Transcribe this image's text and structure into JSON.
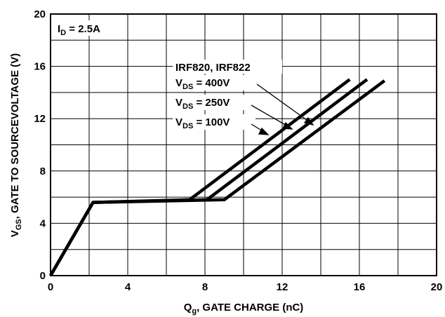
{
  "chart_data": {
    "type": "line",
    "xlabel": {
      "main": "Q",
      "sub": "g",
      "rest": ", GATE CHARGE (nC)"
    },
    "ylabel": {
      "main": "V",
      "sub": "GS",
      "rest": ", GATE TO SOURCEVOLTAGE (V)"
    },
    "xlim": [
      0,
      20
    ],
    "ylim": [
      0,
      20
    ],
    "x_ticks": [
      "0",
      "4",
      "8",
      "12",
      "16",
      "20"
    ],
    "y_ticks": [
      "0",
      "4",
      "8",
      "12",
      "16",
      "20"
    ],
    "grid": true,
    "condition": {
      "main": "I",
      "sub": "D",
      "rest": " = 2.5A"
    },
    "legend": {
      "device": "IRF820, IRF822",
      "entries": [
        {
          "main": "V",
          "sub": "DS",
          "rest": " = 400V"
        },
        {
          "main": "V",
          "sub": "DS",
          "rest": " = 250V"
        },
        {
          "main": "V",
          "sub": "DS",
          "rest": " = 100V"
        }
      ]
    },
    "series": [
      {
        "x": [
          0,
          2.2,
          9.0,
          17.3
        ],
        "y": [
          0,
          5.6,
          5.8,
          14.9
        ]
      },
      {
        "x": [
          0,
          2.2,
          8.1,
          16.4
        ],
        "y": [
          0,
          5.6,
          5.8,
          15.0
        ]
      },
      {
        "x": [
          0,
          2.2,
          7.2,
          15.5
        ],
        "y": [
          0,
          5.6,
          5.8,
          15.0
        ]
      }
    ]
  }
}
